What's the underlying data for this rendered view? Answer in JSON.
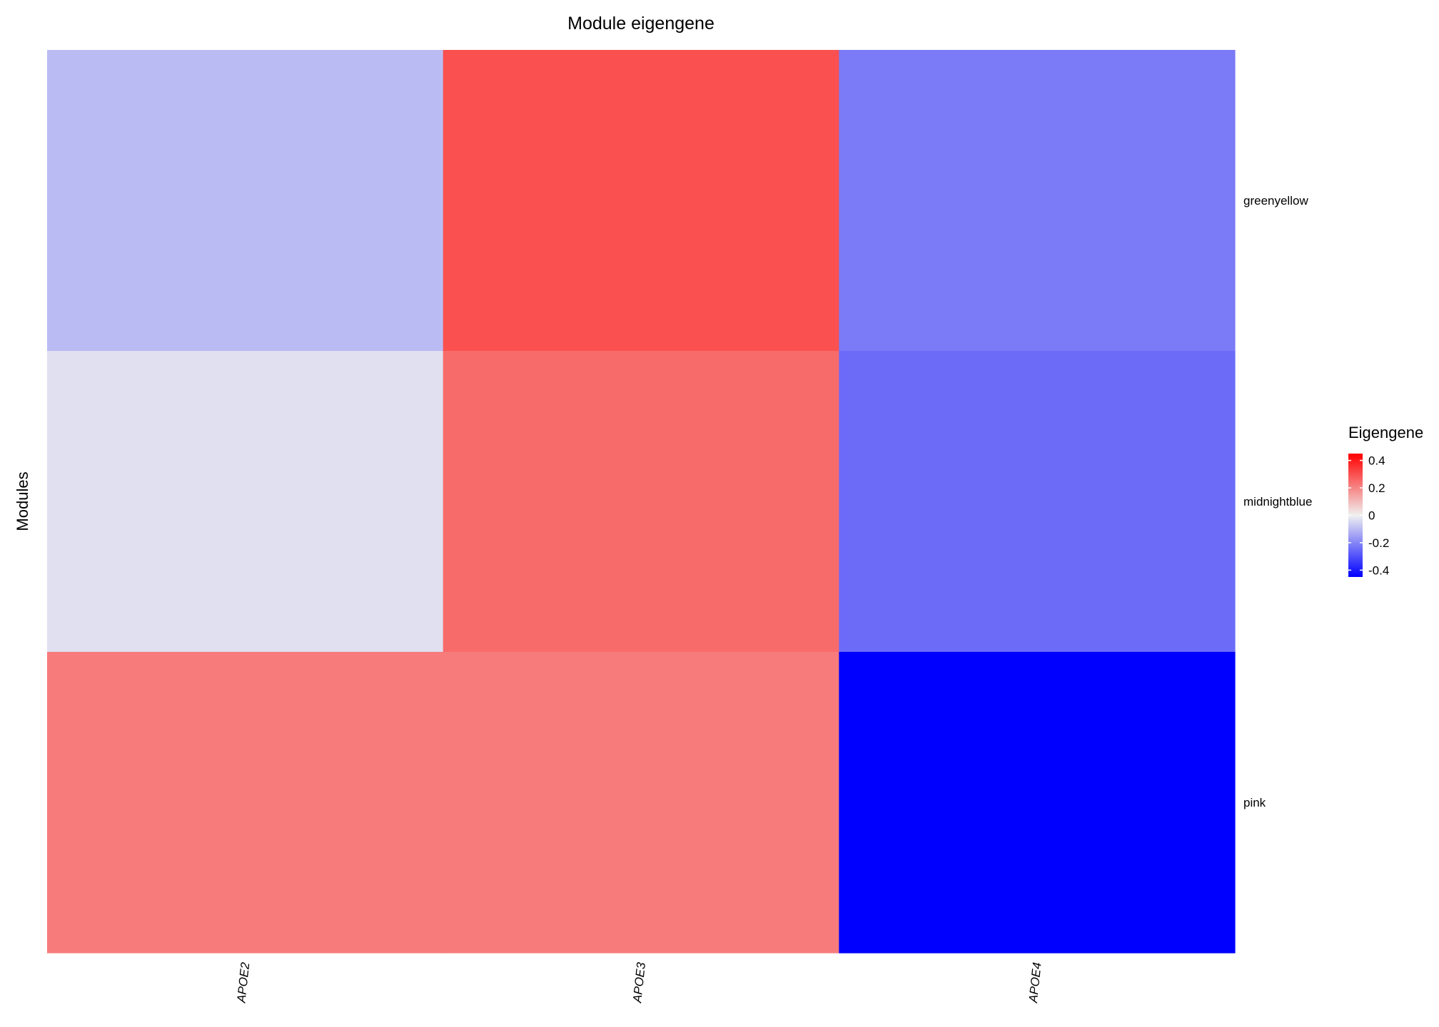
{
  "chart_data": {
    "type": "heatmap",
    "title": "Module eigengene",
    "ylabel": "Modules",
    "xlabel": "",
    "columns": [
      "APOE2",
      "APOE3",
      "APOE4"
    ],
    "rows": [
      "greenyellow",
      "midnightblue",
      "pink"
    ],
    "values": [
      [
        -0.1,
        0.3,
        -0.22
      ],
      [
        -0.03,
        0.25,
        -0.25
      ],
      [
        0.22,
        0.22,
        -0.45
      ]
    ],
    "color_scale": {
      "min": -0.45,
      "max": 0.45,
      "low_color": "#0000ff",
      "mid_color": "#f0f0f0",
      "high_color": "#ff0000"
    },
    "legend": {
      "title": "Eigengene",
      "ticks": [
        "0.4",
        "0.2",
        "0",
        "-0.2",
        "-0.4"
      ],
      "tick_values": [
        0.4,
        0.2,
        0,
        -0.2,
        -0.4
      ],
      "placement": "right"
    }
  }
}
